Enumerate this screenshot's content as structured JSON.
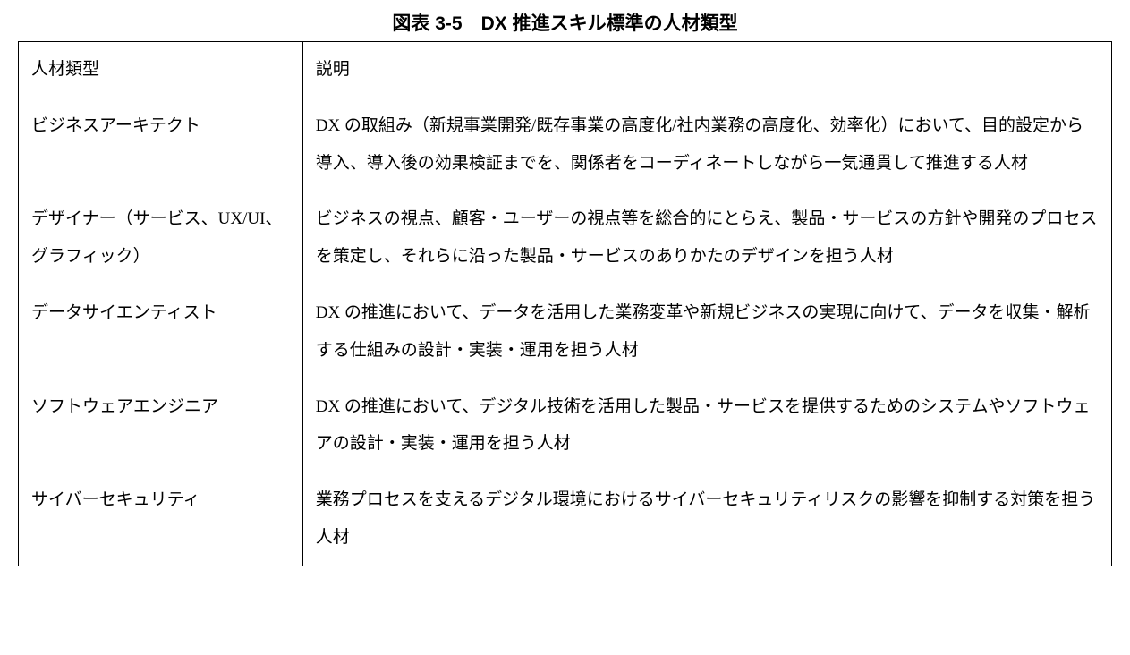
{
  "caption": "図表 3-5　DX 推進スキル標準の人材類型",
  "table": {
    "columns": [
      {
        "width_pct": 26
      },
      {
        "width_pct": 74
      }
    ],
    "header": {
      "col1": "人材類型",
      "col2": "説明"
    },
    "rows": [
      {
        "col1": "ビジネスアーキテクト",
        "col2": "DX の取組み（新規事業開発/既存事業の高度化/社内業務の高度化、効率化）において、目的設定から導入、導入後の効果検証までを、関係者をコーディネートしながら一気通貫して推進する人材"
      },
      {
        "col1": "デザイナー（サービス、UX/UI、グラフィック）",
        "col2": "ビジネスの視点、顧客・ユーザーの視点等を総合的にとらえ、製品・サービスの方針や開発のプロセスを策定し、それらに沿った製品・サービスのありかたのデザインを担う人材"
      },
      {
        "col1": "データサイエンティスト",
        "col2": "DX の推進において、データを活用した業務変革や新規ビジネスの実現に向けて、データを収集・解析する仕組みの設計・実装・運用を担う人材"
      },
      {
        "col1": "ソフトウェアエンジニア",
        "col2": "DX の推進において、デジタル技術を活用した製品・サービスを提供するためのシステムやソフトウェアの設計・実装・運用を担う人材"
      },
      {
        "col1": "サイバーセキュリティ",
        "col2": "業務プロセスを支えるデジタル環境におけるサイバーセキュリティリスクの影響を抑制する対策を担う人材"
      }
    ],
    "border_color": "#000000",
    "background_color": "#ffffff",
    "font_size_pt": 14,
    "line_height": 2.2
  }
}
